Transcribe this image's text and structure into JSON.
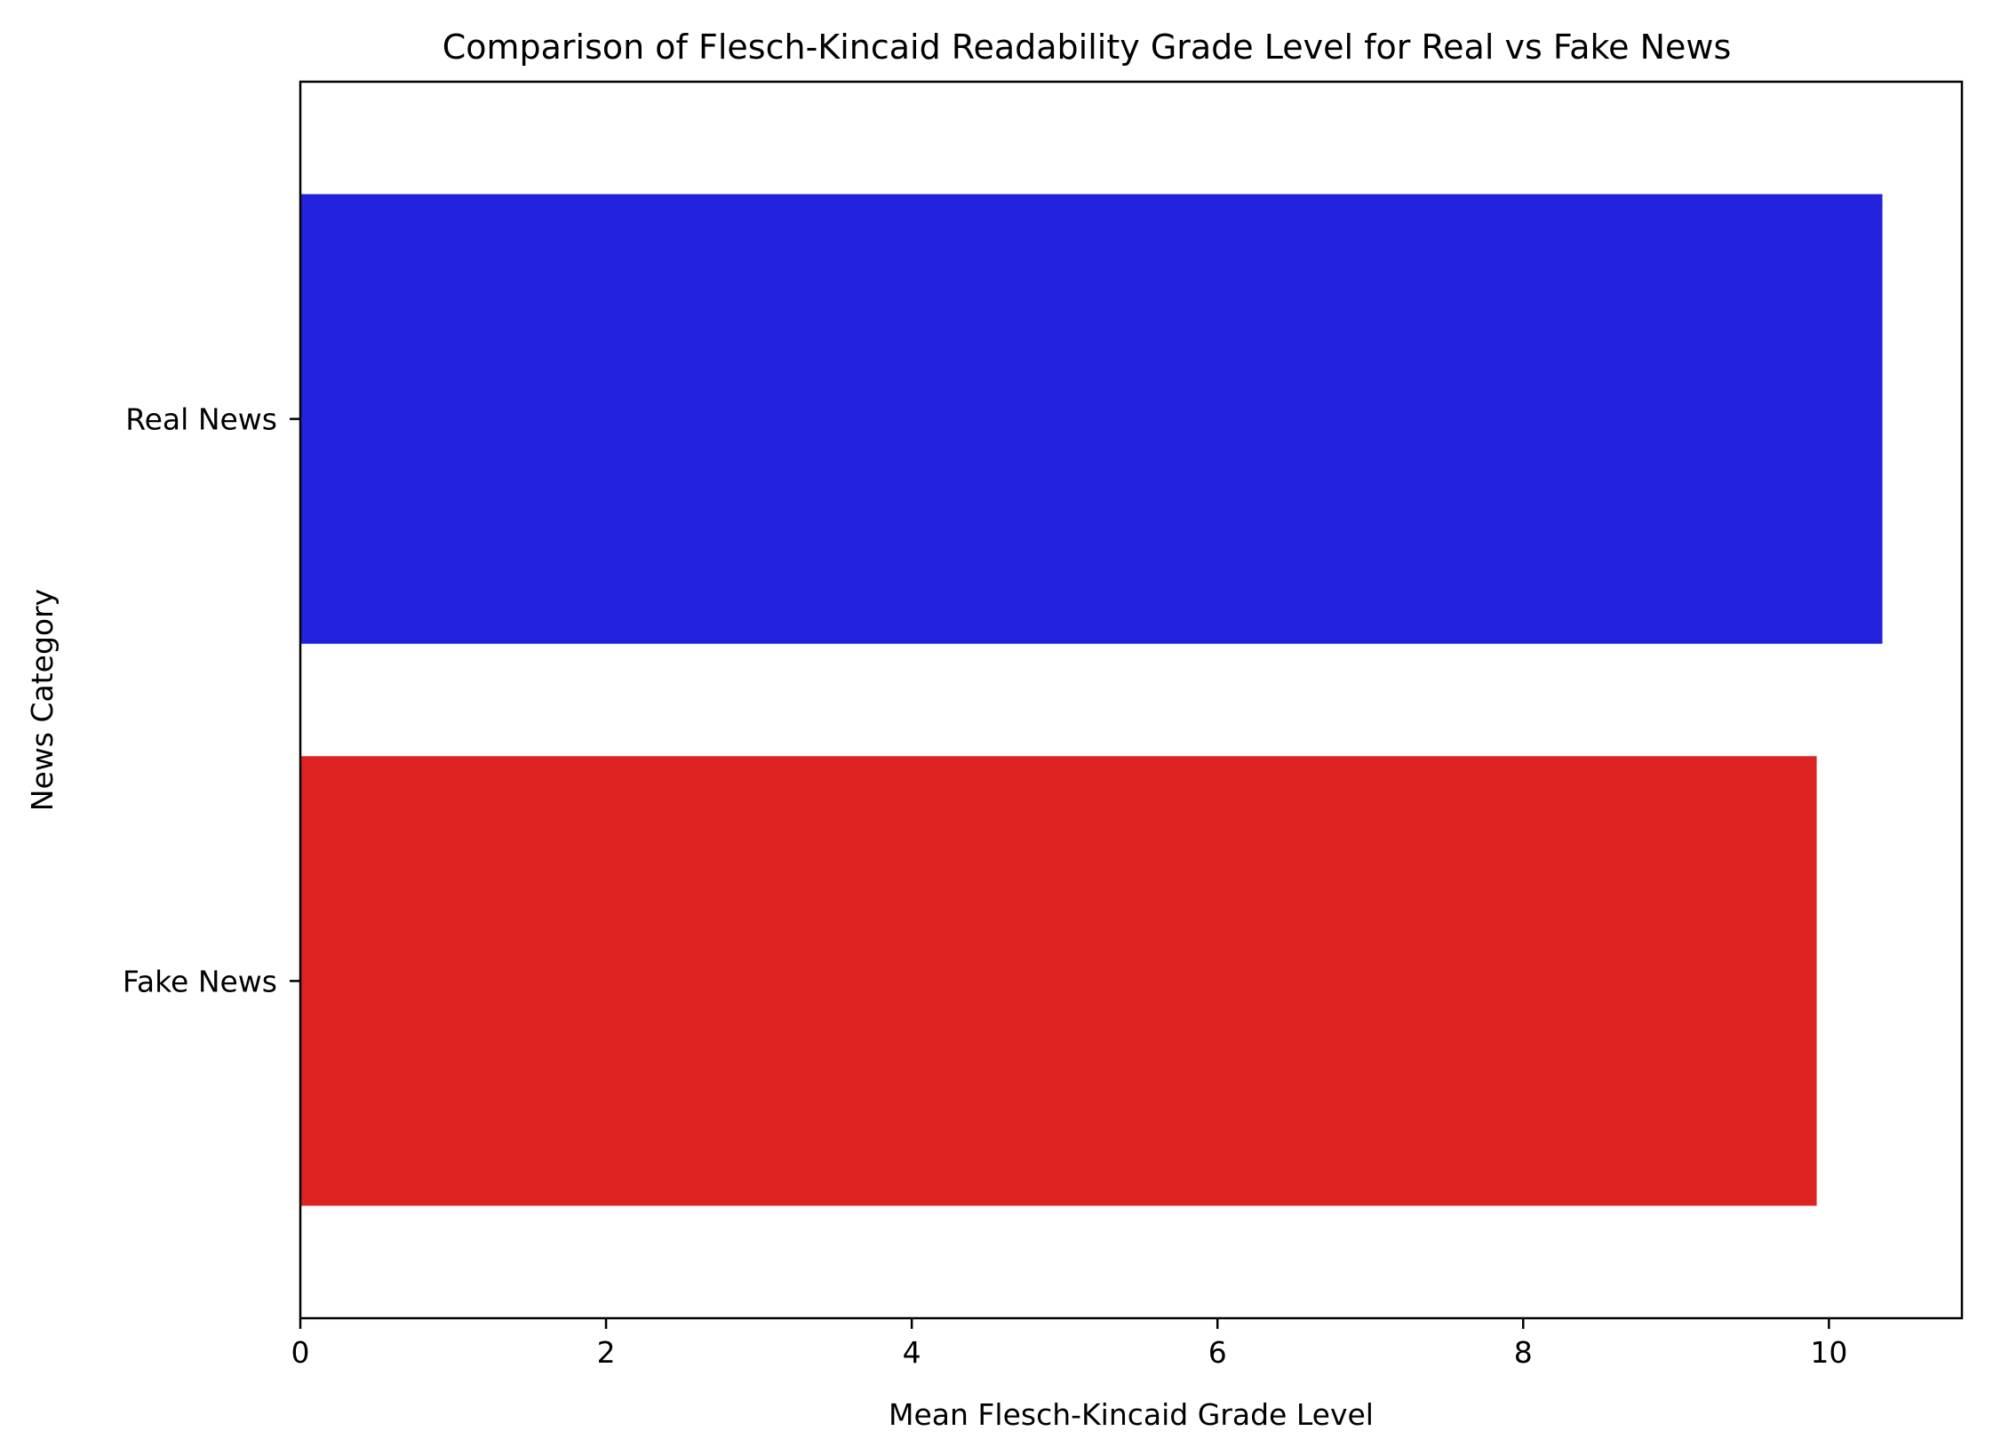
{
  "chart_data": {
    "type": "bar",
    "orientation": "horizontal",
    "title": "Comparison of Flesch-Kincaid Readability Grade Level for Real vs Fake News",
    "xlabel": "Mean Flesch-Kincaid Grade Level",
    "ylabel": "News Category",
    "categories": [
      "Real News",
      "Fake News"
    ],
    "values": [
      10.35,
      9.92
    ],
    "colors": [
      "#2222dd",
      "#dd2222"
    ],
    "xlim": [
      0,
      10.87
    ],
    "xticks": [
      0,
      2,
      4,
      6,
      8,
      10
    ],
    "grid": false,
    "legend": "none"
  }
}
